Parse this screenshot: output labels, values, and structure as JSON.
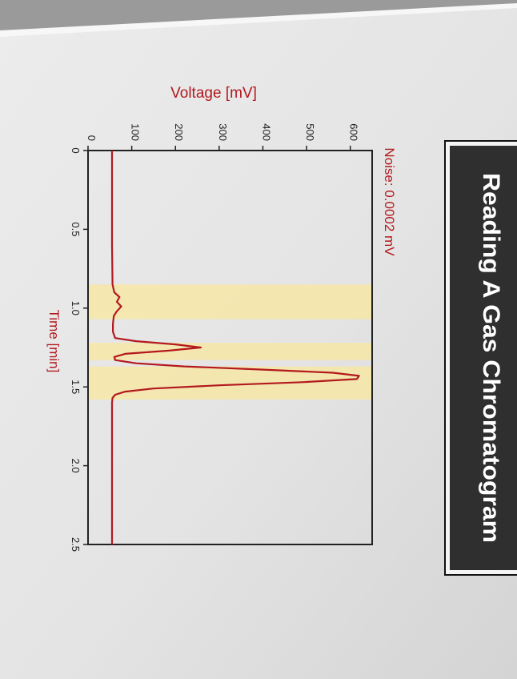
{
  "banner": {
    "title": "Reading A Gas Chromatogram"
  },
  "annotation": {
    "noise": "Noise:  0.0002 mV"
  },
  "colors": {
    "trace": "#b3191e",
    "label": "#b3191e",
    "highlight": "#f6e6a6",
    "axis": "#222222",
    "banner_bg": "#2f2f2f",
    "banner_text": "#ffffff"
  },
  "chart_data": {
    "type": "line",
    "title": "",
    "xlabel": "Time [min]",
    "ylabel": "Voltage [mV]",
    "xlim": [
      0,
      2.5
    ],
    "ylim": [
      0,
      650
    ],
    "x_ticks": [
      0,
      0.5,
      1.0,
      1.5,
      2.0,
      2.5
    ],
    "x_tick_labels": [
      "0",
      "0.5",
      "1.0",
      "1.5",
      "2.0",
      "2.5"
    ],
    "y_ticks": [
      0,
      100,
      200,
      300,
      400,
      500,
      600
    ],
    "y_tick_labels": [
      "0",
      "100",
      "200",
      "300",
      "400",
      "500",
      "600"
    ],
    "grid": false,
    "highlight_bands": [
      {
        "x_start": 0.85,
        "x_end": 1.07
      },
      {
        "x_start": 1.22,
        "x_end": 1.33
      },
      {
        "x_start": 1.37,
        "x_end": 1.58
      }
    ],
    "series": [
      {
        "x": [
          0,
          0.3,
          0.6,
          0.85,
          0.9,
          0.93,
          0.96,
          0.99,
          1.02,
          1.05,
          1.1,
          1.15,
          1.19,
          1.21,
          1.23,
          1.25,
          1.27,
          1.29,
          1.31,
          1.33,
          1.35,
          1.37,
          1.39,
          1.41,
          1.43,
          1.45,
          1.47,
          1.49,
          1.51,
          1.53,
          1.55,
          1.57,
          1.6,
          1.8,
          2.0,
          2.2,
          2.5
        ],
        "y": [
          55,
          55,
          55,
          56,
          60,
          72,
          66,
          76,
          66,
          59,
          57,
          57,
          62,
          110,
          200,
          258,
          185,
          85,
          60,
          62,
          110,
          220,
          400,
          560,
          620,
          615,
          490,
          300,
          150,
          85,
          62,
          56,
          55,
          55,
          55,
          55,
          55
        ]
      }
    ]
  }
}
